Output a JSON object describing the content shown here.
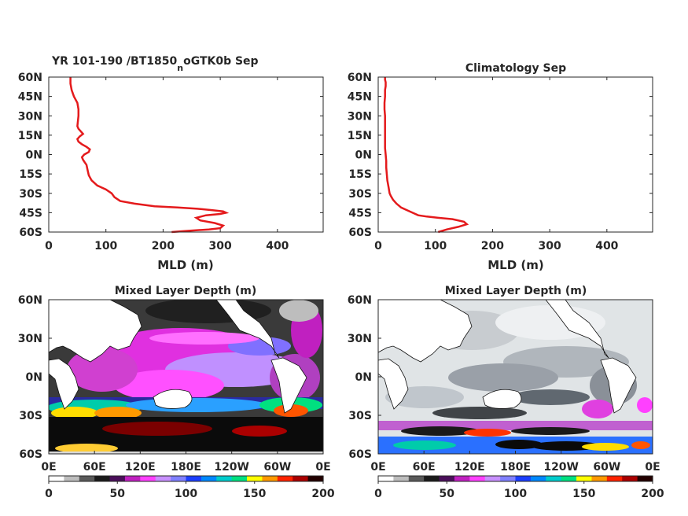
{
  "chart_data": [
    {
      "type": "line",
      "title": "YR 101-190 /BT1850",
      "title_subscript": "n",
      "title_suffix": "oGTK0b Sep",
      "xlabel": "MLD (m)",
      "ylabel": "",
      "xlim": [
        0,
        480
      ],
      "ylim": [
        -60,
        60
      ],
      "xticks": [
        "0",
        "100",
        "200",
        "300",
        "400"
      ],
      "yticks": [
        "60N",
        "45N",
        "30N",
        "15N",
        "0N",
        "15S",
        "30S",
        "45S",
        "60S"
      ],
      "color": "#e41a1c",
      "series": [
        {
          "x": [
            215,
            245,
            280,
            300,
            305,
            290,
            265,
            258,
            275,
            300,
            310,
            305,
            285,
            260,
            225,
            185,
            150,
            125,
            115,
            110,
            100,
            85,
            75,
            70,
            68,
            66,
            63,
            60,
            58,
            62,
            70,
            72,
            66,
            58,
            52,
            50,
            54,
            60,
            56,
            52,
            50,
            51,
            52,
            52,
            50,
            44,
            40,
            38,
            38,
            38,
            38
          ],
          "y": [
            -60,
            -59,
            -58,
            -57,
            -55,
            -53,
            -51,
            -49,
            -47,
            -46,
            -45,
            -44,
            -43,
            -42,
            -41,
            -40,
            -38,
            -36,
            -33,
            -30,
            -27,
            -24,
            -20,
            -16,
            -12,
            -8,
            -6,
            -4,
            -2,
            0,
            2,
            4,
            6,
            8,
            10,
            12,
            14,
            16,
            18,
            20,
            22,
            26,
            30,
            35,
            40,
            45,
            50,
            55,
            58,
            59,
            60
          ]
        }
      ]
    },
    {
      "type": "line",
      "title": "Climatology Sep",
      "xlabel": "MLD (m)",
      "ylabel": "",
      "xlim": [
        0,
        480
      ],
      "ylim": [
        -60,
        60
      ],
      "xticks": [
        "0",
        "100",
        "200",
        "300",
        "400"
      ],
      "yticks": [
        "60N",
        "45N",
        "30N",
        "15N",
        "0N",
        "15S",
        "30S",
        "45S",
        "60S"
      ],
      "color": "#e41a1c",
      "series": [
        {
          "x": [
            105,
            120,
            140,
            155,
            150,
            130,
            105,
            85,
            70,
            60,
            50,
            40,
            32,
            26,
            22,
            20,
            18,
            16,
            15,
            14,
            14,
            13,
            12,
            12,
            12,
            12,
            12,
            12,
            11,
            11,
            12,
            12,
            13,
            13,
            12,
            12,
            12
          ],
          "y": [
            -60,
            -58,
            -56,
            -54,
            -52,
            -50,
            -49,
            -48,
            -47,
            -45,
            -43,
            -41,
            -38,
            -35,
            -32,
            -30,
            -25,
            -20,
            -15,
            -10,
            -5,
            0,
            5,
            10,
            15,
            20,
            25,
            30,
            35,
            40,
            45,
            50,
            53,
            56,
            58,
            59,
            60
          ]
        }
      ]
    },
    {
      "type": "heatmap",
      "title": "Mixed Layer Depth (m)",
      "xticks": [
        "0E",
        "60E",
        "120E",
        "180E",
        "120W",
        "60W",
        "0E"
      ],
      "yticks": [
        "60N",
        "30N",
        "0N",
        "30S",
        "60S"
      ],
      "colorbar": {
        "range": [
          0,
          200
        ],
        "ticks": [
          "0",
          "50",
          "100",
          "150",
          "200"
        ]
      }
    },
    {
      "type": "heatmap",
      "title": "Mixed Layer Depth (m)",
      "xticks": [
        "0E",
        "60E",
        "120E",
        "180E",
        "120W",
        "60W",
        "0E"
      ],
      "yticks": [
        "60N",
        "30N",
        "0N",
        "30S",
        "60S"
      ],
      "colorbar": {
        "range": [
          0,
          200
        ],
        "ticks": [
          "0",
          "50",
          "100",
          "150",
          "200"
        ]
      }
    }
  ],
  "colors": {
    "line": "#e41a1c",
    "colormap": [
      "#ffffff",
      "#bdbdbd",
      "#5a5a5a",
      "#1a1a1a",
      "#4a0f5a",
      "#c020c0",
      "#ff40ff",
      "#c890ff",
      "#8080ff",
      "#1a3dff",
      "#0088ff",
      "#00cccc",
      "#00e080",
      "#ffff00",
      "#ff9900",
      "#ff2200",
      "#aa0000",
      "#220000"
    ]
  }
}
